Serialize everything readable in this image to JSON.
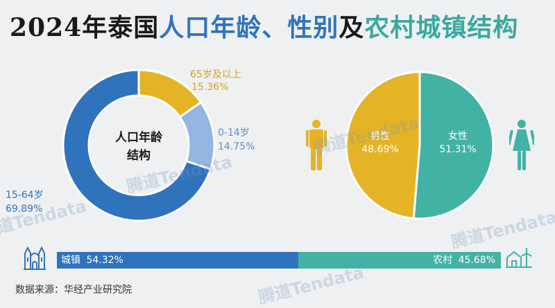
{
  "title": {
    "part1": "2024年泰国",
    "part2": "人口年龄、性别",
    "part3": "及",
    "part4": "农村城镇结构"
  },
  "chart_data": [
    {
      "type": "pie",
      "donut": true,
      "center_label_line1": "人口年龄",
      "center_label_line2": "结构",
      "slices": [
        {
          "label": "65岁及以上",
          "value": 15.36,
          "value_text": "15.36%",
          "color": "#e5b326"
        },
        {
          "label": "0-14岁",
          "value": 14.75,
          "value_text": "14.75%",
          "color": "#93b6e0"
        },
        {
          "label": "15-64岁",
          "value": 69.89,
          "value_text": "69.89%",
          "color": "#2f73bd"
        }
      ]
    },
    {
      "type": "pie",
      "slices": [
        {
          "label": "男性",
          "value": 48.69,
          "value_text": "48.69%",
          "color": "#e5b326"
        },
        {
          "label": "女性",
          "value": 51.31,
          "value_text": "51.31%",
          "color": "#42b2a4"
        }
      ]
    },
    {
      "type": "bar",
      "stacked": true,
      "orientation": "horizontal",
      "segments": [
        {
          "label": "城镇",
          "value": 54.32,
          "value_text": "54.32%",
          "color": "#2f73bd"
        },
        {
          "label": "农村",
          "value": 45.68,
          "value_text": "45.68%",
          "color": "#42b2a4"
        }
      ]
    }
  ],
  "icons": {
    "urban": "city-building-icon",
    "rural": "farmhouse-windmill-icon",
    "male": "male-person-icon",
    "female": "female-person-icon"
  },
  "watermark": "腾道Tendata",
  "source": "数据来源：华经产业研究院"
}
